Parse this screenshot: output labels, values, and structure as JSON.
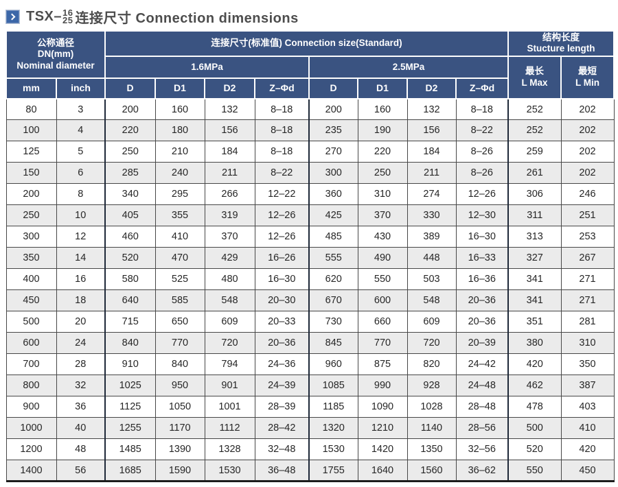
{
  "title": {
    "prefix": "TSX–",
    "frac_top": "16",
    "frac_bottom": "25",
    "suffix": "连接尺寸 Connection dimensions",
    "icon": "chevron-right"
  },
  "colors": {
    "header_bg": "#3a5381",
    "stripe": "#ebebeb",
    "title_icon_bg": "#3c67a8",
    "grid": "#464646",
    "section_divider": "#1e2838"
  },
  "table": {
    "header": {
      "dn": {
        "line1": "公称通径",
        "line2": "DN(mm)",
        "line3": "Nominal diameter"
      },
      "connection": "连接尺寸(标准值) Connection size(Standard)",
      "pressure_1": "1.6MPa",
      "pressure_2": "2.5MPa",
      "unit_mm": "mm",
      "unit_inch": "inch",
      "dim_cols": [
        "D",
        "D1",
        "D2",
        "Z–Φd"
      ],
      "structure": {
        "line1": "结构长度",
        "line2": "Stucture length"
      },
      "l_max": {
        "line1": "最长",
        "line2": "L Max"
      },
      "l_min": {
        "line1": "最短",
        "line2": "L Min"
      }
    },
    "rows": [
      [
        "80",
        "3",
        "200",
        "160",
        "132",
        "8–18",
        "200",
        "160",
        "132",
        "8–18",
        "252",
        "202"
      ],
      [
        "100",
        "4",
        "220",
        "180",
        "156",
        "8–18",
        "235",
        "190",
        "156",
        "8–22",
        "252",
        "202"
      ],
      [
        "125",
        "5",
        "250",
        "210",
        "184",
        "8–18",
        "270",
        "220",
        "184",
        "8–26",
        "259",
        "202"
      ],
      [
        "150",
        "6",
        "285",
        "240",
        "211",
        "8–22",
        "300",
        "250",
        "211",
        "8–26",
        "261",
        "202"
      ],
      [
        "200",
        "8",
        "340",
        "295",
        "266",
        "12–22",
        "360",
        "310",
        "274",
        "12–26",
        "306",
        "246"
      ],
      [
        "250",
        "10",
        "405",
        "355",
        "319",
        "12–26",
        "425",
        "370",
        "330",
        "12–30",
        "311",
        "251"
      ],
      [
        "300",
        "12",
        "460",
        "410",
        "370",
        "12–26",
        "485",
        "430",
        "389",
        "16–30",
        "313",
        "253"
      ],
      [
        "350",
        "14",
        "520",
        "470",
        "429",
        "16–26",
        "555",
        "490",
        "448",
        "16–33",
        "327",
        "267"
      ],
      [
        "400",
        "16",
        "580",
        "525",
        "480",
        "16–30",
        "620",
        "550",
        "503",
        "16–36",
        "341",
        "271"
      ],
      [
        "450",
        "18",
        "640",
        "585",
        "548",
        "20–30",
        "670",
        "600",
        "548",
        "20–36",
        "341",
        "271"
      ],
      [
        "500",
        "20",
        "715",
        "650",
        "609",
        "20–33",
        "730",
        "660",
        "609",
        "20–36",
        "351",
        "281"
      ],
      [
        "600",
        "24",
        "840",
        "770",
        "720",
        "20–36",
        "845",
        "770",
        "720",
        "20–39",
        "380",
        "310"
      ],
      [
        "700",
        "28",
        "910",
        "840",
        "794",
        "24–36",
        "960",
        "875",
        "820",
        "24–42",
        "420",
        "350"
      ],
      [
        "800",
        "32",
        "1025",
        "950",
        "901",
        "24–39",
        "1085",
        "990",
        "928",
        "24–48",
        "462",
        "387"
      ],
      [
        "900",
        "36",
        "1125",
        "1050",
        "1001",
        "28–39",
        "1185",
        "1090",
        "1028",
        "28–48",
        "478",
        "403"
      ],
      [
        "1000",
        "40",
        "1255",
        "1170",
        "1112",
        "28–42",
        "1320",
        "1210",
        "1140",
        "28–56",
        "500",
        "410"
      ],
      [
        "1200",
        "48",
        "1485",
        "1390",
        "1328",
        "32–48",
        "1530",
        "1420",
        "1350",
        "32–56",
        "520",
        "420"
      ],
      [
        "1400",
        "56",
        "1685",
        "1590",
        "1530",
        "36–48",
        "1755",
        "1640",
        "1560",
        "36–62",
        "550",
        "450"
      ]
    ]
  }
}
